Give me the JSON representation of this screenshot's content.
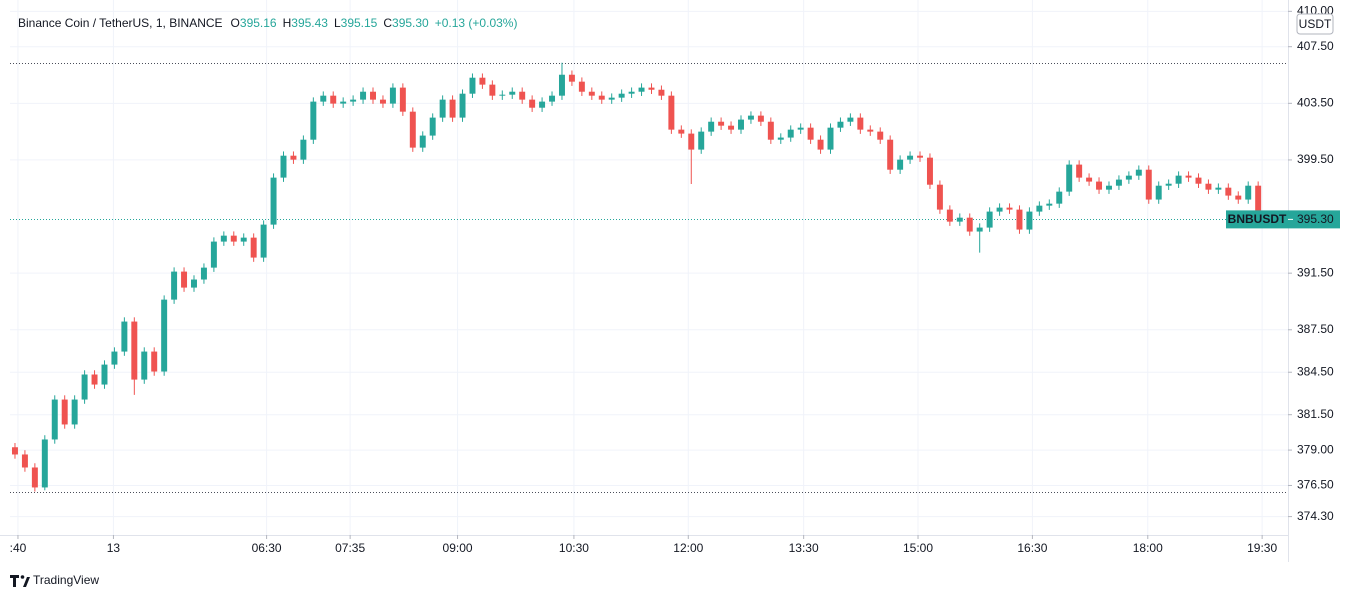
{
  "chart_data": {
    "type": "candlestick",
    "title": "Binance Coin / TetherUS, 1, BINANCE",
    "ohlc": [
      {
        "label": "O",
        "value": "395.16"
      },
      {
        "label": "H",
        "value": "395.43"
      },
      {
        "label": "L",
        "value": "395.15"
      },
      {
        "label": "C",
        "value": "395.30"
      }
    ],
    "change": "+0.13 (+0.03%)",
    "currency": "USDT",
    "symbol_tag": "BNBUSDT",
    "last_price": {
      "value": 395.3,
      "label": "395.30"
    },
    "high_line": 406.37,
    "low_line": 376.07,
    "brand": "TradingView",
    "up_color": "#26a69a",
    "down_color": "#ef5350",
    "grid": true,
    "xlim": [
      -0.5,
      128
    ],
    "xticks": [
      {
        "value": 0.3,
        "label": ":40"
      },
      {
        "value": 9.9,
        "label": "13"
      },
      {
        "value": 25.3,
        "label": "06:30"
      },
      {
        "value": 33.7,
        "label": "07:35"
      },
      {
        "value": 44.5,
        "label": "09:00"
      },
      {
        "value": 56.2,
        "label": "10:30"
      },
      {
        "value": 67.7,
        "label": "12:00"
      },
      {
        "value": 79.3,
        "label": "13:30"
      },
      {
        "value": 90.8,
        "label": "15:00"
      },
      {
        "value": 102.3,
        "label": "16:30"
      },
      {
        "value": 113.9,
        "label": "18:00"
      },
      {
        "value": 125.4,
        "label": "19:30"
      }
    ],
    "ylim": [
      373.0,
      410.8
    ],
    "yticks": [
      {
        "value": 410,
        "label": "410.00"
      },
      {
        "value": 407.5,
        "label": "407.50"
      },
      {
        "value": 403.5,
        "label": "403.50"
      },
      {
        "value": 399.5,
        "label": "399.50"
      },
      {
        "value": 391.5,
        "label": "391.50"
      },
      {
        "value": 387.5,
        "label": "387.50"
      },
      {
        "value": 384.5,
        "label": "384.50"
      },
      {
        "value": 381.5,
        "label": "381.50"
      },
      {
        "value": 379,
        "label": "379.00"
      },
      {
        "value": 376.5,
        "label": "376.50"
      },
      {
        "value": 374.3,
        "label": "374.30"
      }
    ],
    "open": [
      379.2,
      378.69,
      377.77,
      376.36,
      379.75,
      382.57,
      380.81,
      382.57,
      384.34,
      383.63,
      385.04,
      385.96,
      388.08,
      383.98,
      385.96,
      384.55,
      389.63,
      391.61,
      390.48,
      391.05,
      391.89,
      393.73,
      394.15,
      393.73,
      394.01,
      392.6,
      394.93,
      398.25,
      399.8,
      399.52,
      400.93,
      403.62,
      404.04,
      403.48,
      403.62,
      403.76,
      404.32,
      403.76,
      403.48,
      404.61,
      402.91,
      400.37,
      401.22,
      402.49,
      403.76,
      402.49,
      404.18,
      405.31,
      404.82,
      404.04,
      404.11,
      404.32,
      403.76,
      403.19,
      403.62,
      404.04,
      405.52,
      405.03,
      404.32,
      404.04,
      403.76,
      403.9,
      404.18,
      404.32,
      404.61,
      404.46,
      404.04,
      401.64,
      401.36,
      400.23,
      401.5,
      402.2,
      401.92,
      401.64,
      402.35,
      402.63,
      402.2,
      400.93,
      401.08,
      401.64,
      401.78,
      400.93,
      400.23,
      401.78,
      402.2,
      402.49,
      401.64,
      401.5,
      400.93,
      398.81,
      399.52,
      399.8,
      399.66,
      397.75,
      395.99,
      395.14,
      395.42,
      394.44,
      394.72,
      395.85,
      396.13,
      395.99,
      394.58,
      395.85,
      396.27,
      396.41,
      397.26,
      399.17,
      398.25,
      397.97,
      397.4,
      397.68,
      398.11,
      398.39,
      398.81,
      396.7,
      397.68,
      397.82,
      398.39,
      398.25,
      397.82,
      397.4,
      397.54,
      396.98,
      396.7,
      397.68,
      395.16
    ],
    "high": [
      379.5,
      378.99,
      378.07,
      380.05,
      382.87,
      382.87,
      382.87,
      384.64,
      384.64,
      385.34,
      386.26,
      388.38,
      388.38,
      386.26,
      386.26,
      389.93,
      391.91,
      391.91,
      391.35,
      392.19,
      394.03,
      394.45,
      394.45,
      394.31,
      394.31,
      395.23,
      398.55,
      400.1,
      400.1,
      401.23,
      403.92,
      404.34,
      404.34,
      403.92,
      404.06,
      404.62,
      404.62,
      404.06,
      404.91,
      404.91,
      403.21,
      401.52,
      402.79,
      404.06,
      404.06,
      404.48,
      405.61,
      405.61,
      405.12,
      404.41,
      404.62,
      404.62,
      404.06,
      403.92,
      404.34,
      406.37,
      405.82,
      405.33,
      404.62,
      404.34,
      404.2,
      404.48,
      404.62,
      404.91,
      404.91,
      404.76,
      404.34,
      401.94,
      401.66,
      401.8,
      402.5,
      402.5,
      402.22,
      402.65,
      402.93,
      402.93,
      402.5,
      401.38,
      401.94,
      402.08,
      402.08,
      401.23,
      402.08,
      402.5,
      402.79,
      402.79,
      401.94,
      401.8,
      401.23,
      399.82,
      400.1,
      400.1,
      399.96,
      398.05,
      396.29,
      395.72,
      395.72,
      395.02,
      396.15,
      396.43,
      396.43,
      396.29,
      396.15,
      396.57,
      396.71,
      397.56,
      399.47,
      399.47,
      398.55,
      398.27,
      397.98,
      398.41,
      398.69,
      399.11,
      399.11,
      397.98,
      398.12,
      398.69,
      398.69,
      398.55,
      398.12,
      397.84,
      397.84,
      397.28,
      397.98,
      397.98,
      395.43
    ],
    "low": [
      378.39,
      377.47,
      376.07,
      376.16,
      379.45,
      380.51,
      380.51,
      382.27,
      383.33,
      383.33,
      384.74,
      385.66,
      382.9,
      383.68,
      384.25,
      384.25,
      389.33,
      390.18,
      390.18,
      390.75,
      391.59,
      393.43,
      393.43,
      393.43,
      392.3,
      392.3,
      394.63,
      397.95,
      399.22,
      399.22,
      400.63,
      403.32,
      403.18,
      403.18,
      403.32,
      403.46,
      403.46,
      403.18,
      403.18,
      402.61,
      400.07,
      400.07,
      400.92,
      402.19,
      402.19,
      402.19,
      403.88,
      404.52,
      403.74,
      403.74,
      403.81,
      403.46,
      402.89,
      402.89,
      403.32,
      403.74,
      404.73,
      404.02,
      403.74,
      403.46,
      403.46,
      403.6,
      403.88,
      404.02,
      404.16,
      403.74,
      401.34,
      401.06,
      397.8,
      399.93,
      401.2,
      401.62,
      401.34,
      401.34,
      402.05,
      401.9,
      400.63,
      400.63,
      400.78,
      401.34,
      400.63,
      399.93,
      399.93,
      401.48,
      401.9,
      401.34,
      401.2,
      400.63,
      398.51,
      398.51,
      399.22,
      399.36,
      397.45,
      395.69,
      394.84,
      394.84,
      394.14,
      392.95,
      394.42,
      395.55,
      395.69,
      394.28,
      394.28,
      395.55,
      395.97,
      396.11,
      396.96,
      397.95,
      397.67,
      397.1,
      397.1,
      397.38,
      397.81,
      398.09,
      396.4,
      396.4,
      397.38,
      397.52,
      397.95,
      397.52,
      397.1,
      397.1,
      396.68,
      396.4,
      396.4,
      394.86,
      395.15
    ],
    "close": [
      378.69,
      377.77,
      376.36,
      379.75,
      382.57,
      380.81,
      382.57,
      384.34,
      383.63,
      385.04,
      385.96,
      388.08,
      383.98,
      385.96,
      384.55,
      389.63,
      391.61,
      390.48,
      391.05,
      391.89,
      393.73,
      394.15,
      393.73,
      394.01,
      392.6,
      394.93,
      398.25,
      399.8,
      399.52,
      400.93,
      403.62,
      404.04,
      403.48,
      403.62,
      403.76,
      404.32,
      403.76,
      403.48,
      404.61,
      402.91,
      400.37,
      401.22,
      402.49,
      403.76,
      402.49,
      404.18,
      405.31,
      404.82,
      404.04,
      404.11,
      404.32,
      403.76,
      403.19,
      403.62,
      404.04,
      405.52,
      405.03,
      404.32,
      404.04,
      403.76,
      403.9,
      404.18,
      404.32,
      404.61,
      404.46,
      404.04,
      401.64,
      401.36,
      400.23,
      401.5,
      402.2,
      401.92,
      401.64,
      402.35,
      402.63,
      402.2,
      400.93,
      401.08,
      401.64,
      401.78,
      400.93,
      400.23,
      401.78,
      402.2,
      402.49,
      401.64,
      401.5,
      400.93,
      398.81,
      399.52,
      399.8,
      399.66,
      397.75,
      395.99,
      395.14,
      395.42,
      394.44,
      394.72,
      395.85,
      396.13,
      395.99,
      394.58,
      395.85,
      396.27,
      396.41,
      397.26,
      399.17,
      398.25,
      397.97,
      397.4,
      397.68,
      398.11,
      398.39,
      398.81,
      396.7,
      397.68,
      397.82,
      398.39,
      398.25,
      397.82,
      397.4,
      397.54,
      396.98,
      396.7,
      397.68,
      395.16,
      395.3
    ]
  }
}
